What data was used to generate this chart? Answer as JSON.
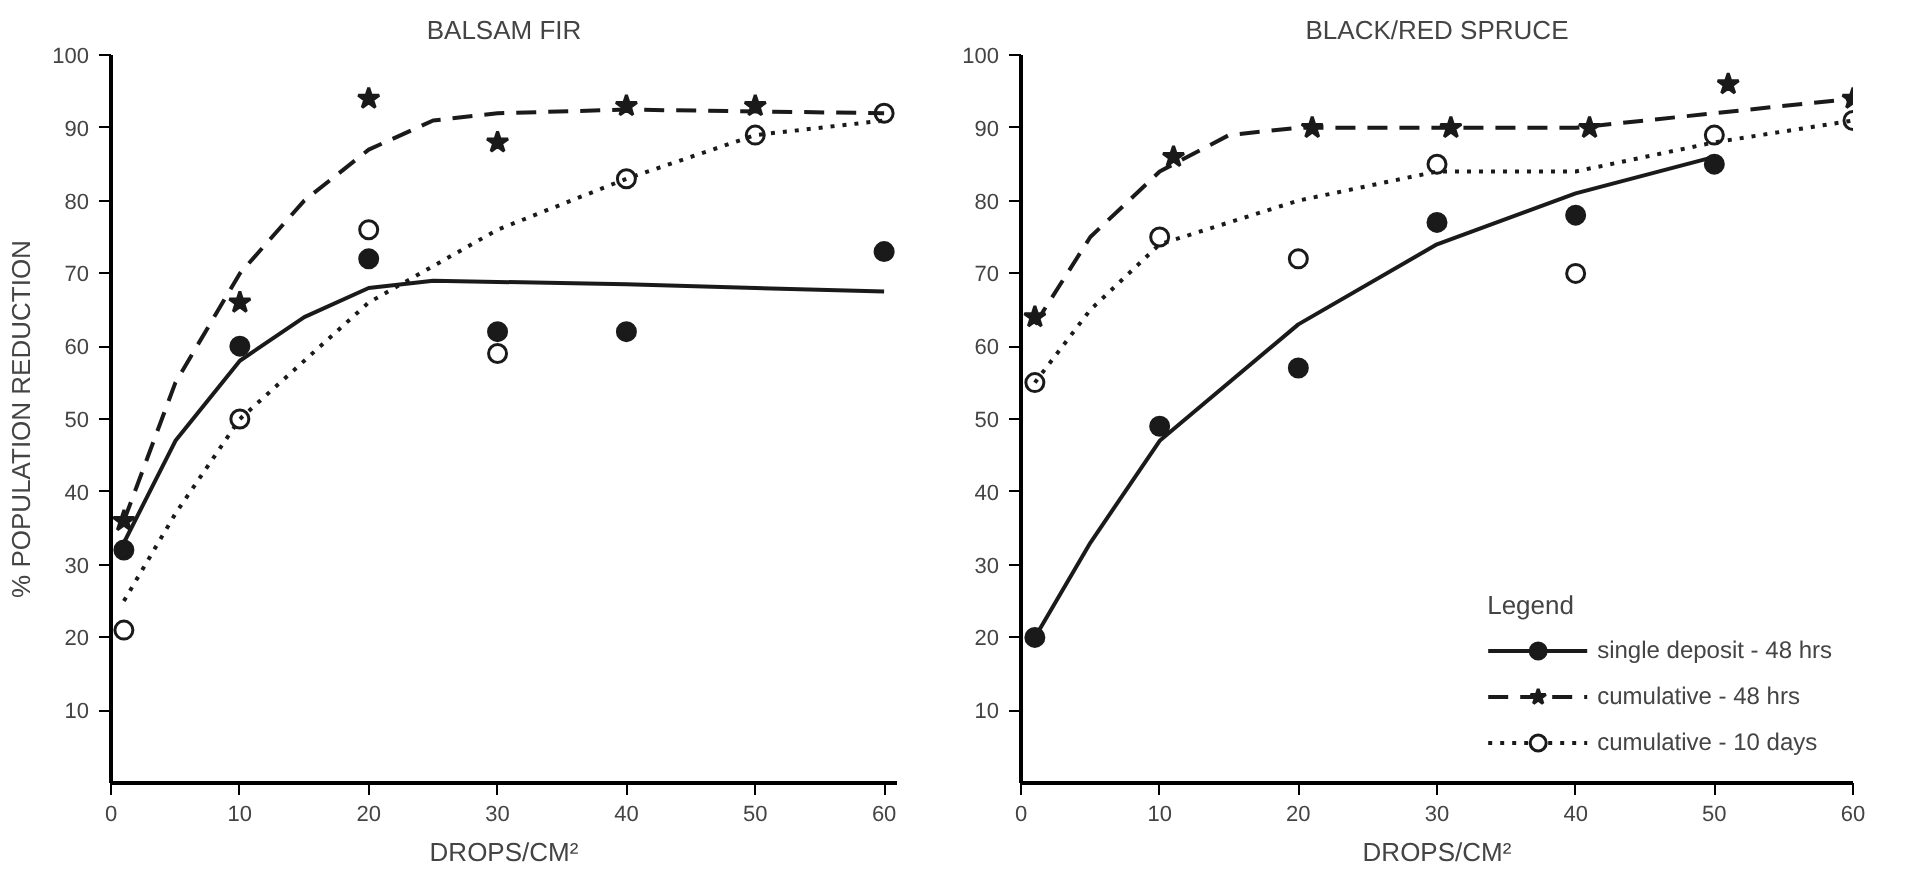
{
  "chart_data": [
    {
      "type": "scatter",
      "title": "BALSAM FIR",
      "xlabel": "DROPS/CM²",
      "ylabel": "% POPULATION REDUCTION",
      "xlim": [
        0,
        61
      ],
      "ylim": [
        0,
        100
      ],
      "xticks": [
        0,
        10,
        20,
        30,
        40,
        50,
        60
      ],
      "yticks": [
        10,
        20,
        30,
        40,
        50,
        60,
        70,
        80,
        90,
        100
      ],
      "grid": false,
      "legend": false,
      "series": [
        {
          "type": "scatter",
          "marker": "circle",
          "color": "#1a1a1a",
          "x": [
            1,
            10,
            20,
            30,
            40,
            60
          ],
          "values": [
            32,
            60,
            72,
            62,
            62,
            73
          ]
        },
        {
          "type": "scatter",
          "marker": "star",
          "color": "#1a1a1a",
          "x": [
            1,
            10,
            20,
            30,
            40,
            50
          ],
          "values": [
            36,
            66,
            94,
            88,
            93,
            93
          ]
        },
        {
          "type": "scatter",
          "marker": "circle",
          "color": "#ffffff",
          "x": [
            1,
            10,
            20,
            30,
            40,
            50,
            60
          ],
          "values": [
            21,
            50,
            76,
            59,
            83,
            89,
            92
          ]
        },
        {
          "type": "line",
          "line_style": "solid",
          "color": "#1a1a1a",
          "x": [
            1,
            5,
            10,
            15,
            20,
            25,
            40,
            60
          ],
          "values": [
            33,
            47,
            58,
            64,
            68,
            69,
            68.5,
            67.5
          ]
        },
        {
          "type": "line",
          "line_style": "dashed",
          "color": "#1a1a1a",
          "x": [
            1,
            5,
            10,
            15,
            20,
            25,
            30,
            40,
            60
          ],
          "values": [
            36,
            55,
            70,
            80,
            87,
            91,
            92,
            92.5,
            92
          ]
        },
        {
          "type": "line",
          "line_style": "dotted",
          "color": "#1a1a1a",
          "x": [
            1,
            5,
            10,
            20,
            30,
            40,
            50,
            60
          ],
          "values": [
            25,
            37,
            50,
            66,
            76,
            83,
            89,
            91
          ]
        }
      ]
    },
    {
      "type": "scatter",
      "title": "BLACK/RED SPRUCE",
      "xlabel": "DROPS/CM²",
      "legend_title": "Legend",
      "xlim": [
        0,
        60
      ],
      "ylim": [
        0,
        100
      ],
      "xticks": [
        0,
        10,
        20,
        30,
        40,
        50,
        60
      ],
      "yticks": [
        10,
        20,
        30,
        40,
        50,
        60,
        70,
        80,
        90,
        100
      ],
      "grid": false,
      "legend": "bottom right",
      "series": [
        {
          "type": "scatter",
          "marker": "circle",
          "color": "#1a1a1a",
          "x": [
            1,
            10,
            20,
            30,
            40,
            50
          ],
          "values": [
            20,
            49,
            57,
            77,
            78,
            85
          ]
        },
        {
          "type": "scatter",
          "marker": "star",
          "color": "#1a1a1a",
          "x": [
            1,
            11,
            21,
            31,
            41,
            51,
            60
          ],
          "values": [
            64,
            86,
            90,
            90,
            90,
            96,
            94
          ]
        },
        {
          "type": "scatter",
          "marker": "circle",
          "color": "#ffffff",
          "x": [
            1,
            10,
            20,
            30,
            40,
            50,
            60
          ],
          "values": [
            55,
            75,
            72,
            85,
            70,
            89,
            91
          ]
        },
        {
          "type": "line",
          "name": "single deposit - 48 hrs",
          "line_style": "solid",
          "color": "#1a1a1a",
          "x": [
            1,
            5,
            10,
            20,
            30,
            40,
            50
          ],
          "values": [
            20,
            33,
            47,
            63,
            74,
            81,
            86
          ]
        },
        {
          "type": "line",
          "name": "cumulative - 48 hrs",
          "line_style": "dashed",
          "color": "#1a1a1a",
          "x": [
            1,
            5,
            10,
            15,
            20,
            40,
            50,
            60
          ],
          "values": [
            63,
            75,
            84,
            89,
            90,
            90,
            92,
            94
          ]
        },
        {
          "type": "line",
          "name": "cumulative - 10 days",
          "line_style": "dotted",
          "color": "#1a1a1a",
          "x": [
            1,
            5,
            10,
            20,
            30,
            40,
            50,
            60
          ],
          "values": [
            55,
            65,
            74,
            80,
            84,
            84,
            88,
            91
          ]
        }
      ]
    }
  ]
}
